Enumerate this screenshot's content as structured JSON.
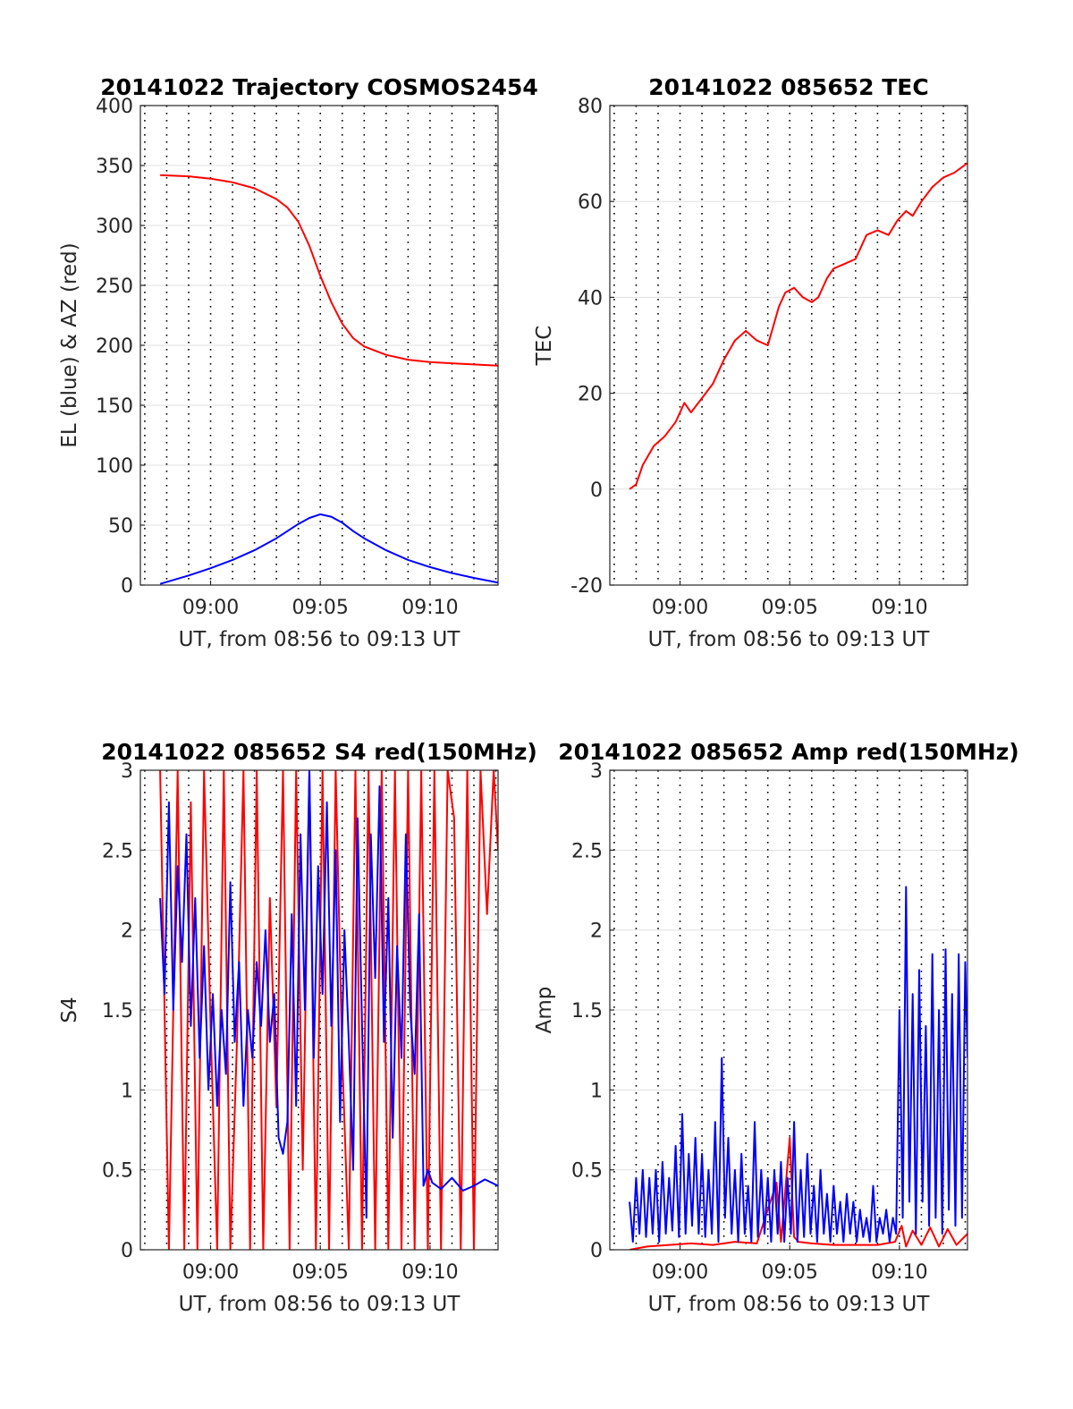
{
  "colors": {
    "red": "#ff0000",
    "blue": "#0000ff",
    "grid": "#000000",
    "axis": "#262626"
  },
  "chart_data": [
    {
      "type": "line",
      "title": "20141022 Trajectory COSMOS2454",
      "xlabel": "UT, from 08:56 to 09:13 UT",
      "ylabel": "EL (blue) & AZ (red)",
      "xlim": [
        8.8,
        25.1
      ],
      "ylim": [
        0,
        400
      ],
      "x_ticks": [
        {
          "x": 12,
          "label": "09:00"
        },
        {
          "x": 17,
          "label": "09:05"
        },
        {
          "x": 22,
          "label": "09:10"
        }
      ],
      "y_ticks": [
        {
          "v": 0,
          "label": "0"
        },
        {
          "v": 50,
          "label": "50"
        },
        {
          "v": 100,
          "label": "100"
        },
        {
          "v": 150,
          "label": "150"
        },
        {
          "v": 200,
          "label": "200"
        },
        {
          "v": 250,
          "label": "250"
        },
        {
          "v": 300,
          "label": "300"
        },
        {
          "v": 350,
          "label": "350"
        },
        {
          "v": 400,
          "label": "400"
        }
      ],
      "series": [
        {
          "color": "red",
          "x": [
            9.7,
            11,
            12,
            13,
            14,
            15,
            15.5,
            16,
            16.5,
            17,
            17.5,
            18,
            18.5,
            19,
            20,
            21,
            22,
            23,
            24,
            25.1
          ],
          "values": [
            342,
            341,
            339,
            336,
            331,
            322,
            315,
            303,
            283,
            258,
            236,
            218,
            206,
            199,
            192,
            188,
            186,
            185,
            184,
            183
          ]
        },
        {
          "color": "blue",
          "x": [
            9.7,
            11,
            12,
            13,
            14,
            15,
            15.5,
            16,
            16.5,
            17,
            17.5,
            18,
            18.5,
            19,
            20,
            21,
            22,
            23,
            24,
            25.1
          ],
          "values": [
            1,
            8,
            14,
            21,
            29,
            39,
            45,
            51,
            56,
            59,
            57,
            52,
            45,
            39,
            29,
            21,
            15,
            10,
            6,
            2
          ]
        }
      ]
    },
    {
      "type": "line",
      "title": "20141022 085652 TEC",
      "xlabel": "UT, from 08:56 to 09:13 UT",
      "ylabel": "TEC",
      "xlim": [
        8.8,
        25.1
      ],
      "ylim": [
        -20,
        80
      ],
      "x_ticks": [
        {
          "x": 12,
          "label": "09:00"
        },
        {
          "x": 17,
          "label": "09:05"
        },
        {
          "x": 22,
          "label": "09:10"
        }
      ],
      "y_ticks": [
        {
          "v": -20,
          "label": "-20"
        },
        {
          "v": 0,
          "label": "0"
        },
        {
          "v": 20,
          "label": "20"
        },
        {
          "v": 40,
          "label": "40"
        },
        {
          "v": 60,
          "label": "60"
        },
        {
          "v": 80,
          "label": "80"
        }
      ],
      "series": [
        {
          "color": "red",
          "x": [
            9.7,
            10,
            10.3,
            10.8,
            11.3,
            11.8,
            12.2,
            12.5,
            13,
            13.5,
            14,
            14.5,
            15,
            15.5,
            16,
            16.5,
            16.8,
            17.2,
            17.6,
            18.0,
            18.3,
            18.7,
            19,
            19.5,
            20,
            20.5,
            21,
            21.5,
            21.9,
            22.3,
            22.6,
            23,
            23.5,
            24,
            24.5,
            25.1
          ],
          "values": [
            0,
            1,
            5,
            9,
            11,
            14,
            18,
            16,
            19,
            22,
            27,
            31,
            33,
            31,
            30,
            38,
            41,
            42,
            40,
            39,
            40,
            44,
            46,
            47,
            48,
            53,
            54,
            53,
            56,
            58,
            57,
            60,
            63,
            65,
            66,
            68
          ]
        }
      ]
    },
    {
      "type": "line",
      "title": "20141022 085652 S4 red(150MHz)",
      "xlabel": "UT, from 08:56 to 09:13 UT",
      "ylabel": "S4",
      "xlim": [
        8.8,
        25.1
      ],
      "ylim": [
        0,
        3
      ],
      "x_ticks": [
        {
          "x": 12,
          "label": "09:00"
        },
        {
          "x": 17,
          "label": "09:05"
        },
        {
          "x": 22,
          "label": "09:10"
        }
      ],
      "y_ticks": [
        {
          "v": 0,
          "label": "0"
        },
        {
          "v": 0.5,
          "label": "0.5"
        },
        {
          "v": 1,
          "label": "1"
        },
        {
          "v": 1.5,
          "label": "1.5"
        },
        {
          "v": 2,
          "label": "2"
        },
        {
          "v": 2.5,
          "label": "2.5"
        },
        {
          "v": 3,
          "label": "3"
        }
      ],
      "series": [
        {
          "color": "red",
          "x": [
            9.7,
            10.1,
            10.5,
            10.8,
            11.1,
            11.4,
            11.7,
            12.0,
            12.3,
            12.6,
            12.9,
            13.2,
            13.5,
            13.8,
            14.1,
            14.4,
            14.7,
            15.0,
            15.3,
            15.6,
            15.9,
            16.2,
            16.5,
            16.8,
            17.1,
            17.4,
            17.7,
            18.0,
            18.3,
            18.6,
            18.9,
            19.2,
            19.5,
            19.8,
            20.1,
            20.4,
            20.7,
            21.0,
            21.3,
            21.6,
            21.9,
            22.2,
            22.5,
            22.8,
            23.1,
            23.4,
            23.7,
            24.0,
            24.3,
            24.6,
            24.9,
            25.1
          ],
          "values": [
            3,
            0,
            3,
            0,
            2.8,
            0,
            3,
            1.4,
            0,
            3,
            0,
            1.3,
            3,
            0,
            3,
            0,
            2.2,
            0.9,
            3,
            0,
            3,
            0.5,
            3,
            0,
            3,
            0,
            3,
            1.2,
            0,
            3,
            0,
            3,
            0,
            3,
            0,
            3,
            0,
            3,
            0,
            3,
            0,
            3,
            0,
            3,
            2.7,
            0,
            3,
            0,
            3,
            2.1,
            3,
            2.5
          ]
        },
        {
          "color": "blue",
          "x": [
            9.7,
            9.9,
            10.1,
            10.3,
            10.5,
            10.7,
            10.9,
            11.1,
            11.3,
            11.5,
            11.7,
            11.9,
            12.1,
            12.3,
            12.5,
            12.7,
            12.9,
            13.1,
            13.3,
            13.5,
            13.7,
            13.9,
            14.1,
            14.3,
            14.5,
            14.7,
            14.9,
            15.1,
            15.3,
            15.5,
            15.7,
            15.9,
            16.1,
            16.3,
            16.5,
            16.7,
            16.9,
            17.1,
            17.3,
            17.5,
            17.7,
            17.9,
            18.1,
            18.3,
            18.5,
            18.7,
            18.9,
            19.1,
            19.3,
            19.5,
            19.7,
            19.9,
            20.1,
            20.3,
            20.5,
            20.7,
            20.9,
            21.1,
            21.3,
            21.5,
            21.7,
            21.9,
            22.1,
            22.5,
            23,
            23.5,
            24,
            24.5,
            25.1
          ],
          "values": [
            2.2,
            1.6,
            2.8,
            1.5,
            2.4,
            1.8,
            2.6,
            1.4,
            2.2,
            1.2,
            1.9,
            1.0,
            1.6,
            0.9,
            1.5,
            1.1,
            2.3,
            1.3,
            1.8,
            0.9,
            1.5,
            1.2,
            1.8,
            1.4,
            2.0,
            1.3,
            1.6,
            0.7,
            0.6,
            0.8,
            2.1,
            0.9,
            2.6,
            1.5,
            3.0,
            1.2,
            2.4,
            1.6,
            2.8,
            1.4,
            2.5,
            0.8,
            2.0,
            1.3,
            0.5,
            2.7,
            1.4,
            0.2,
            2.6,
            1.7,
            2.9,
            1.3,
            2.2,
            0.7,
            1.9,
            1.2,
            2.6,
            1.5,
            1.1,
            2.1,
            0.4,
            0.5,
            0.42,
            0.38,
            0.45,
            0.37,
            0.4,
            0.44,
            0.4
          ]
        }
      ]
    },
    {
      "type": "line",
      "title": "20141022 085652 Amp red(150MHz)",
      "xlabel": "UT, from 08:56 to 09:13 UT",
      "ylabel": "Amp",
      "xlim": [
        8.8,
        25.1
      ],
      "ylim": [
        0,
        3
      ],
      "x_ticks": [
        {
          "x": 12,
          "label": "09:00"
        },
        {
          "x": 17,
          "label": "09:05"
        },
        {
          "x": 22,
          "label": "09:10"
        }
      ],
      "y_ticks": [
        {
          "v": 0,
          "label": "0"
        },
        {
          "v": 0.5,
          "label": "0.5"
        },
        {
          "v": 1,
          "label": "1"
        },
        {
          "v": 1.5,
          "label": "1.5"
        },
        {
          "v": 2,
          "label": "2"
        },
        {
          "v": 2.5,
          "label": "2.5"
        },
        {
          "v": 3,
          "label": "3"
        }
      ],
      "series": [
        {
          "color": "red",
          "x": [
            9.7,
            10.5,
            11.5,
            12.5,
            13.5,
            14.5,
            15.5,
            16.4,
            16.6,
            17,
            17.2,
            17.4,
            18,
            19,
            20,
            21,
            21.8,
            22.1,
            22.3,
            22.6,
            23,
            23.4,
            23.8,
            24.2,
            24.6,
            25.1
          ],
          "values": [
            0,
            0.02,
            0.03,
            0.04,
            0.03,
            0.05,
            0.04,
            0.42,
            0.05,
            0.7,
            0.08,
            0.05,
            0.04,
            0.03,
            0.03,
            0.03,
            0.05,
            0.15,
            0.02,
            0.12,
            0.03,
            0.14,
            0.02,
            0.13,
            0.03,
            0.1
          ]
        },
        {
          "color": "blue",
          "x": [
            9.7,
            9.85,
            10.0,
            10.15,
            10.3,
            10.45,
            10.6,
            10.75,
            10.9,
            11.05,
            11.2,
            11.35,
            11.5,
            11.65,
            11.8,
            11.95,
            12.1,
            12.25,
            12.4,
            12.55,
            12.7,
            12.85,
            13.0,
            13.15,
            13.3,
            13.45,
            13.6,
            13.75,
            13.9,
            14.05,
            14.2,
            14.35,
            14.5,
            14.65,
            14.8,
            14.95,
            15.1,
            15.25,
            15.4,
            15.55,
            15.7,
            15.85,
            16.0,
            16.15,
            16.3,
            16.45,
            16.6,
            16.75,
            16.9,
            17.05,
            17.2,
            17.35,
            17.5,
            17.65,
            17.8,
            17.95,
            18.1,
            18.25,
            18.4,
            18.55,
            18.7,
            18.85,
            19.0,
            19.15,
            19.3,
            19.45,
            19.6,
            19.75,
            19.9,
            20.05,
            20.2,
            20.35,
            20.5,
            20.65,
            20.8,
            20.95,
            21.1,
            21.25,
            21.4,
            21.55,
            21.7,
            21.85,
            22.0,
            22.15,
            22.3,
            22.45,
            22.6,
            22.75,
            22.9,
            23.05,
            23.2,
            23.35,
            23.5,
            23.65,
            23.8,
            23.95,
            24.1,
            24.25,
            24.4,
            24.55,
            24.7,
            24.85,
            25.0,
            25.1
          ],
          "values": [
            0.3,
            0.05,
            0.45,
            0.1,
            0.5,
            0.08,
            0.45,
            0.1,
            0.5,
            0.05,
            0.55,
            0.1,
            0.45,
            0.12,
            0.65,
            0.08,
            0.85,
            0.1,
            0.6,
            0.15,
            0.7,
            0.1,
            0.6,
            0.08,
            0.5,
            0.1,
            0.8,
            0.05,
            1.2,
            0.2,
            0.7,
            0.1,
            0.5,
            0.05,
            0.6,
            0.1,
            0.4,
            0.05,
            0.8,
            0.08,
            0.5,
            0.1,
            0.45,
            0.05,
            0.5,
            0.1,
            0.55,
            0.05,
            0.45,
            0.1,
            0.8,
            0.05,
            0.5,
            0.08,
            0.6,
            0.1,
            0.4,
            0.05,
            0.5,
            0.1,
            0.35,
            0.05,
            0.4,
            0.1,
            0.3,
            0.05,
            0.35,
            0.1,
            0.3,
            0.05,
            0.25,
            0.08,
            0.2,
            0.05,
            0.4,
            0.05,
            0.2,
            0.1,
            0.25,
            0.05,
            0.2,
            0.1,
            1.5,
            0.2,
            2.27,
            0.3,
            1.6,
            0.1,
            1.75,
            0.3,
            1.4,
            0.15,
            1.85,
            0.2,
            1.5,
            0.1,
            1.88,
            0.25,
            1.6,
            0.15,
            1.85,
            0.2,
            1.8,
            1.2
          ]
        }
      ]
    }
  ]
}
